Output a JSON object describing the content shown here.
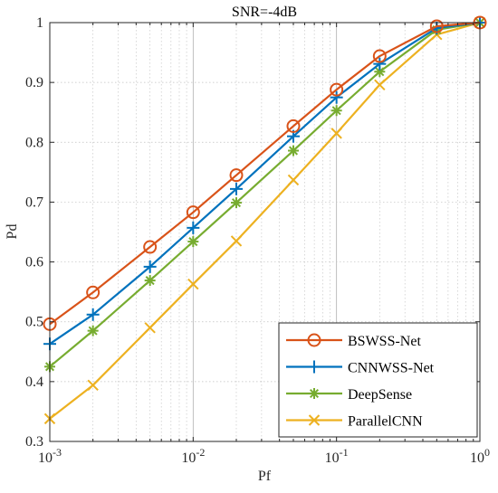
{
  "chart_data": {
    "type": "line",
    "title": "SNR=-4dB",
    "xlabel": "Pf",
    "ylabel": "Pd",
    "xscale": "log",
    "xlim": [
      0.001,
      1
    ],
    "ylim": [
      0.3,
      1
    ],
    "grid": "on",
    "legend_position": "bottom-right",
    "x_ticks": [
      {
        "base": "10",
        "exp": "-3"
      },
      {
        "base": "10",
        "exp": "-2"
      },
      {
        "base": "10",
        "exp": "-1"
      },
      {
        "base": "10",
        "exp": "0"
      }
    ],
    "y_ticks": [
      "0.3",
      "0.4",
      "0.5",
      "0.6",
      "0.7",
      "0.8",
      "0.9",
      "1"
    ],
    "x": [
      0.001,
      0.002,
      0.005,
      0.01,
      0.02,
      0.05,
      0.1,
      0.2,
      0.5,
      1
    ],
    "series": [
      {
        "name": "BSWSS-Net",
        "color": "#D95319",
        "marker": "circle",
        "values": [
          0.496,
          0.549,
          0.625,
          0.683,
          0.745,
          0.827,
          0.888,
          0.944,
          0.994,
          1.0
        ]
      },
      {
        "name": "CNNWSS-Net",
        "color": "#0072BD",
        "marker": "plus",
        "values": [
          0.463,
          0.512,
          0.592,
          0.657,
          0.722,
          0.81,
          0.875,
          0.931,
          0.991,
          1.0
        ]
      },
      {
        "name": "DeepSense",
        "color": "#77AC30",
        "marker": "asterisk",
        "values": [
          0.425,
          0.485,
          0.569,
          0.634,
          0.699,
          0.786,
          0.853,
          0.918,
          0.988,
          1.0
        ]
      },
      {
        "name": "ParallelCNN",
        "color": "#EDB120",
        "marker": "x",
        "values": [
          0.338,
          0.394,
          0.49,
          0.563,
          0.635,
          0.737,
          0.815,
          0.896,
          0.98,
          1.0
        ]
      }
    ]
  }
}
